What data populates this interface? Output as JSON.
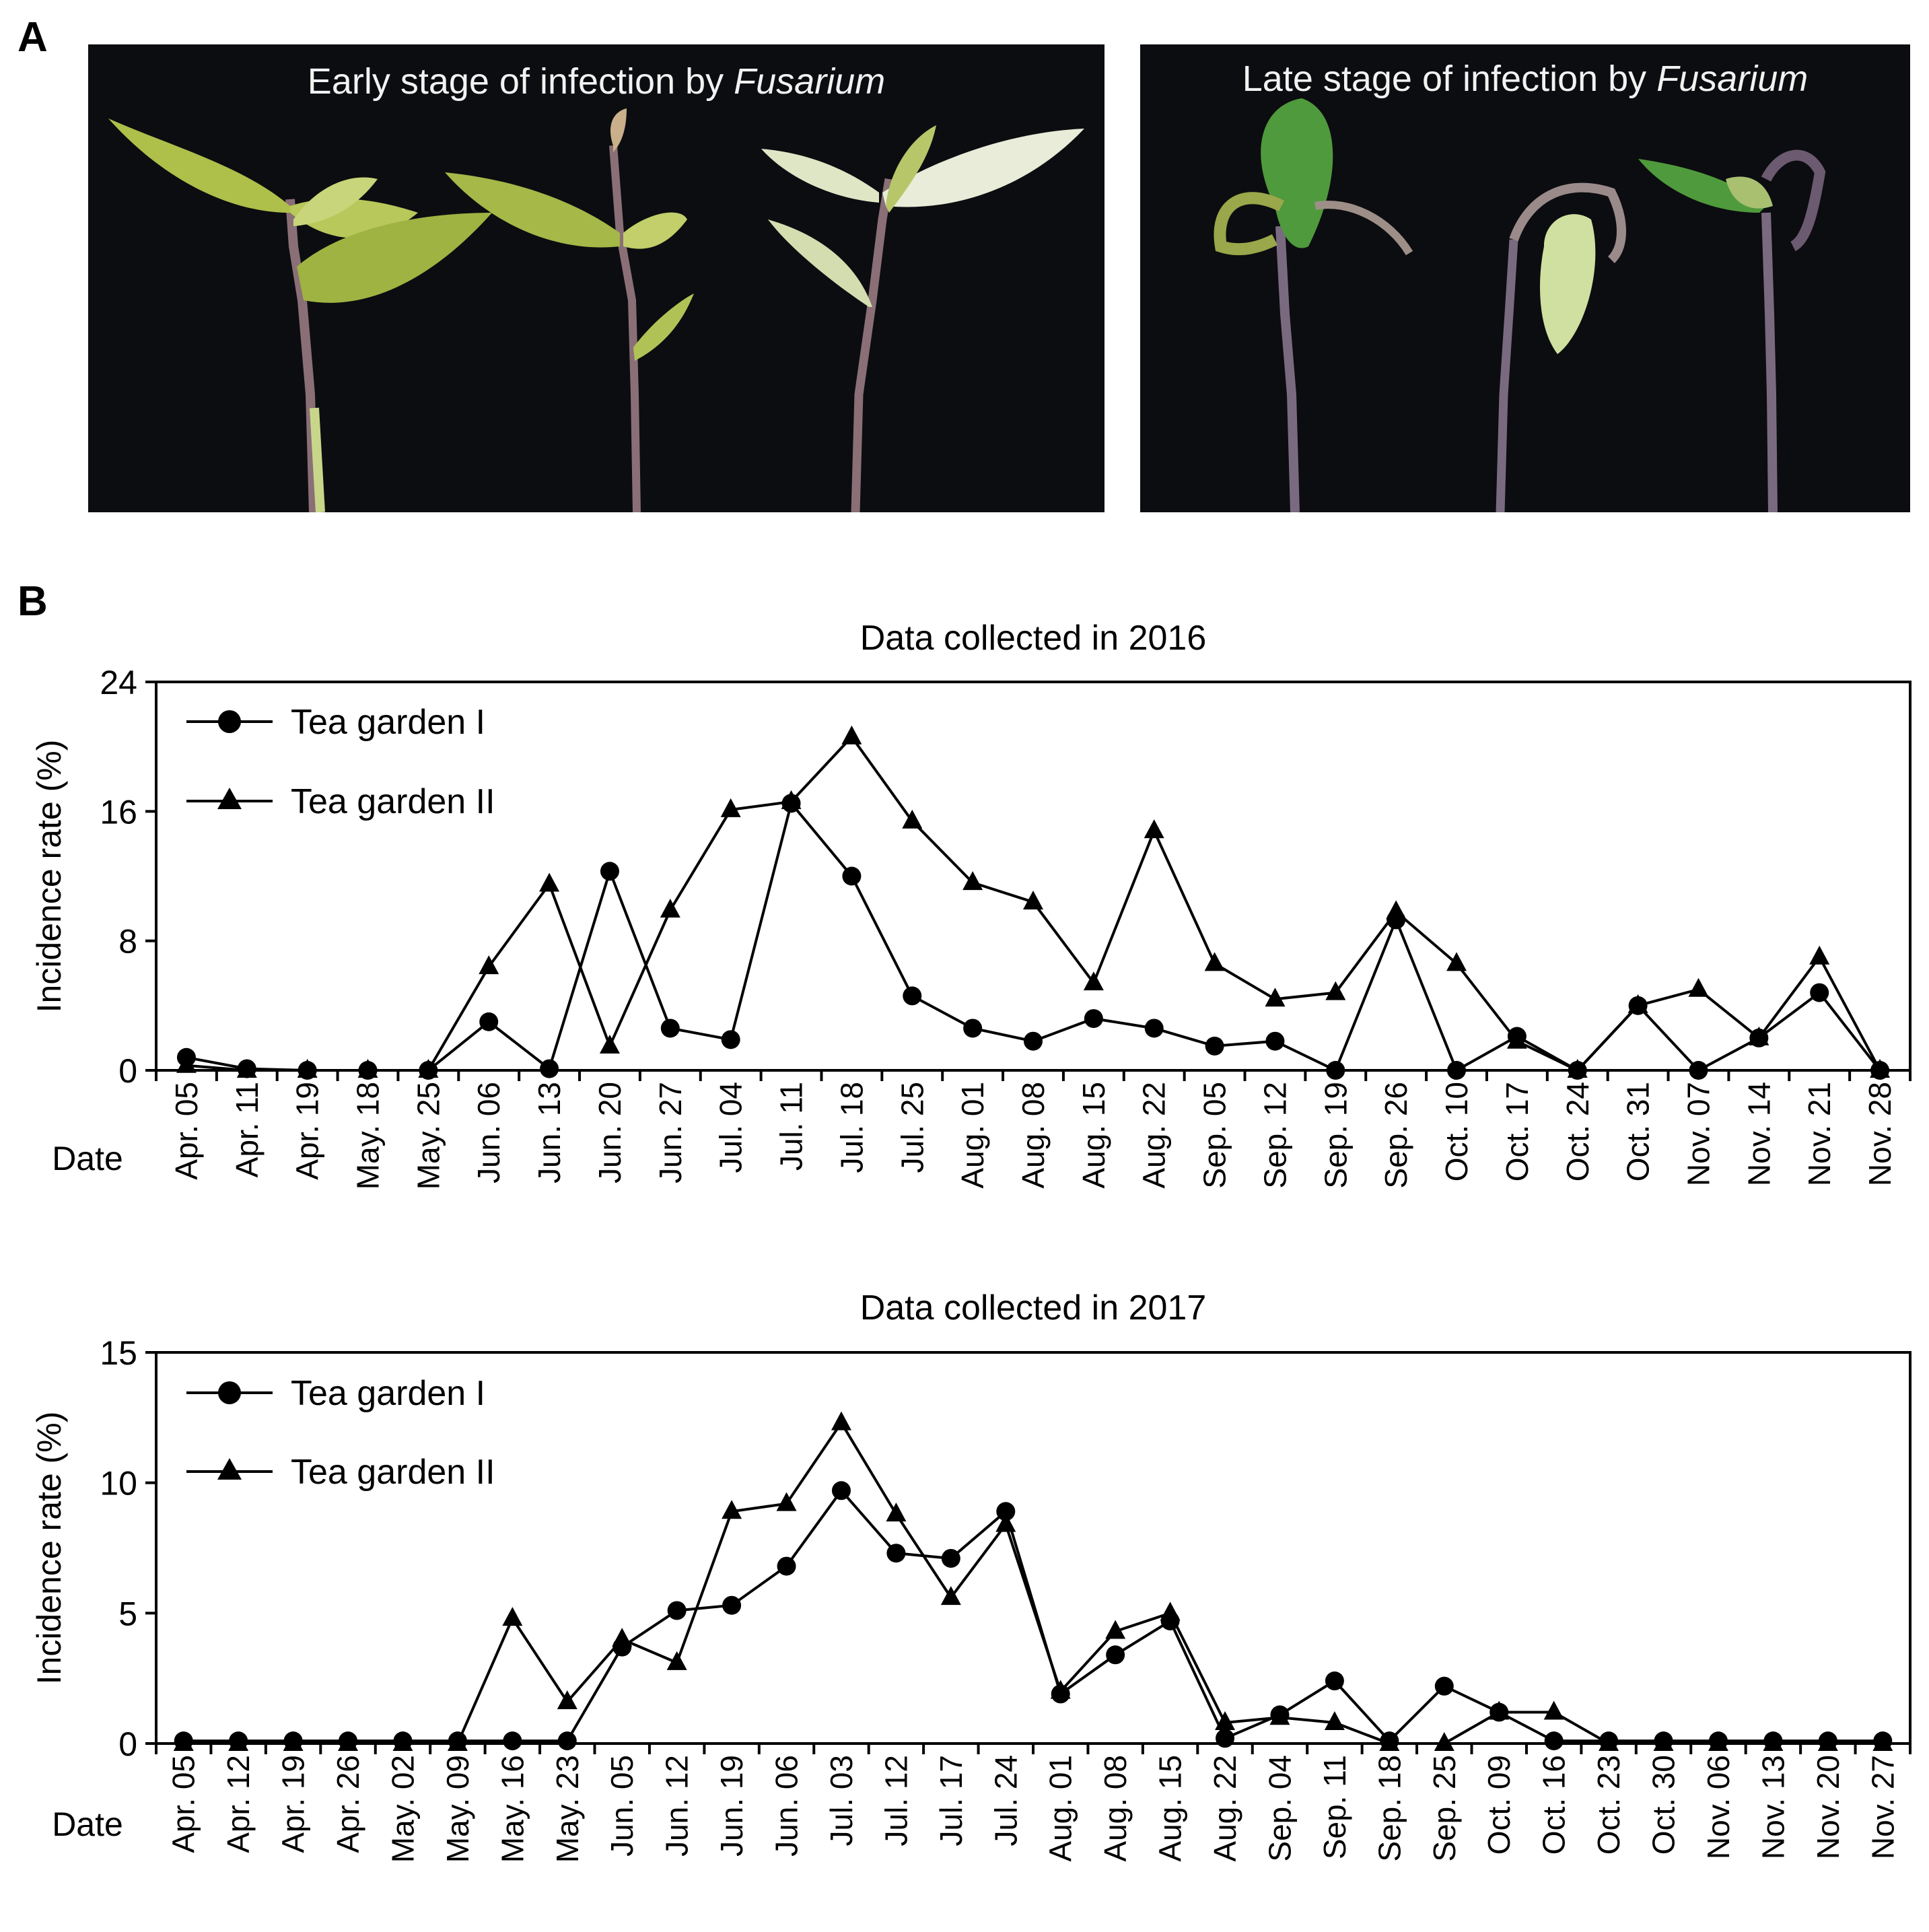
{
  "panels": {
    "a_label": "A",
    "b_label": "B"
  },
  "photos": [
    {
      "caption_prefix": "Early stage of infection by ",
      "caption_italic": "Fusarium"
    },
    {
      "caption_prefix": "Late stage of infection by ",
      "caption_italic": "Fusarium"
    }
  ],
  "chart_data": [
    {
      "type": "line",
      "title": "Data collected in 2016",
      "xlabel": "Date",
      "ylabel": "Incidence rate (%)",
      "ylim": [
        0,
        24
      ],
      "yticks": [
        0,
        8,
        16,
        24
      ],
      "categories": [
        "Apr. 05",
        "Apr. 11",
        "Apr. 19",
        "May. 18",
        "May. 25",
        "Jun. 06",
        "Jun. 13",
        "Jun. 20",
        "Jun. 27",
        "Jul. 04",
        "Jul. 11",
        "Jul. 18",
        "Jul. 25",
        "Aug. 01",
        "Aug. 08",
        "Aug. 15",
        "Aug. 22",
        "Sep. 05",
        "Sep. 12",
        "Sep. 19",
        "Sep. 26",
        "Oct. 10",
        "Oct. 17",
        "Oct. 24",
        "Oct. 31",
        "Nov. 07",
        "Nov. 14",
        "Nov. 21",
        "Nov. 28"
      ],
      "legend_position": "top-left",
      "series": [
        {
          "name": "Tea garden I",
          "marker": "circle",
          "values": [
            0.8,
            0.1,
            0,
            0,
            0,
            3.0,
            0.1,
            12.3,
            2.6,
            1.9,
            16.5,
            12.0,
            4.6,
            2.6,
            1.8,
            3.2,
            2.6,
            1.5,
            1.8,
            0,
            9.3,
            0,
            2.1,
            0,
            4.0,
            0,
            2.0,
            4.8,
            0
          ]
        },
        {
          "name": "Tea garden II",
          "marker": "triangle",
          "values": [
            0.3,
            0,
            0,
            0,
            0,
            6.4,
            11.5,
            1.5,
            9.9,
            16.1,
            16.6,
            20.6,
            15.4,
            11.6,
            10.4,
            5.4,
            14.8,
            6.6,
            4.4,
            4.8,
            9.8,
            6.6,
            1.8,
            0,
            4.0,
            5.0,
            2.0,
            7.0,
            0
          ]
        }
      ]
    },
    {
      "type": "line",
      "title": "Data collected in 2017",
      "xlabel": "Date",
      "ylabel": "Incidence rate (%)",
      "ylim": [
        0,
        15
      ],
      "yticks": [
        0,
        5,
        10,
        15
      ],
      "categories": [
        "Apr. 05",
        "Apr. 12",
        "Apr. 19",
        "Apr. 26",
        "May. 02",
        "May. 09",
        "May. 16",
        "May. 23",
        "Jun. 05",
        "Jun. 12",
        "Jun. 19",
        "Jun. 06",
        "Jul. 03",
        "Jul. 12",
        "Jul. 17",
        "Jul. 24",
        "Aug. 01",
        "Aug. 08",
        "Aug. 15",
        "Aug. 22",
        "Sep. 04",
        "Sep. 11",
        "Sep. 18",
        "Sep. 25",
        "Oct. 09",
        "Oct. 16",
        "Oct. 23",
        "Oct. 30",
        "Nov. 06",
        "Nov. 13",
        "Nov. 20",
        "Nov. 27"
      ],
      "legend_position": "top-left",
      "series": [
        {
          "name": "Tea garden I",
          "marker": "circle",
          "values": [
            0.1,
            0.1,
            0.1,
            0.1,
            0.1,
            0.1,
            0.1,
            0.1,
            3.7,
            5.1,
            5.3,
            6.8,
            9.7,
            7.3,
            7.1,
            8.9,
            1.9,
            3.4,
            4.7,
            0.2,
            1.1,
            2.4,
            0.1,
            2.2,
            1.2,
            0.1,
            0.1,
            0.1,
            0.1,
            0.1,
            0.1,
            0.1
          ]
        },
        {
          "name": "Tea garden II",
          "marker": "triangle",
          "values": [
            0,
            0,
            0,
            0,
            0,
            0,
            4.8,
            1.6,
            4.0,
            3.1,
            8.9,
            9.2,
            12.3,
            8.8,
            5.6,
            8.4,
            2.0,
            4.3,
            5.0,
            0.8,
            1.0,
            0.8,
            0,
            0,
            1.2,
            1.2,
            0,
            0,
            0,
            0,
            0,
            0
          ]
        }
      ]
    }
  ]
}
